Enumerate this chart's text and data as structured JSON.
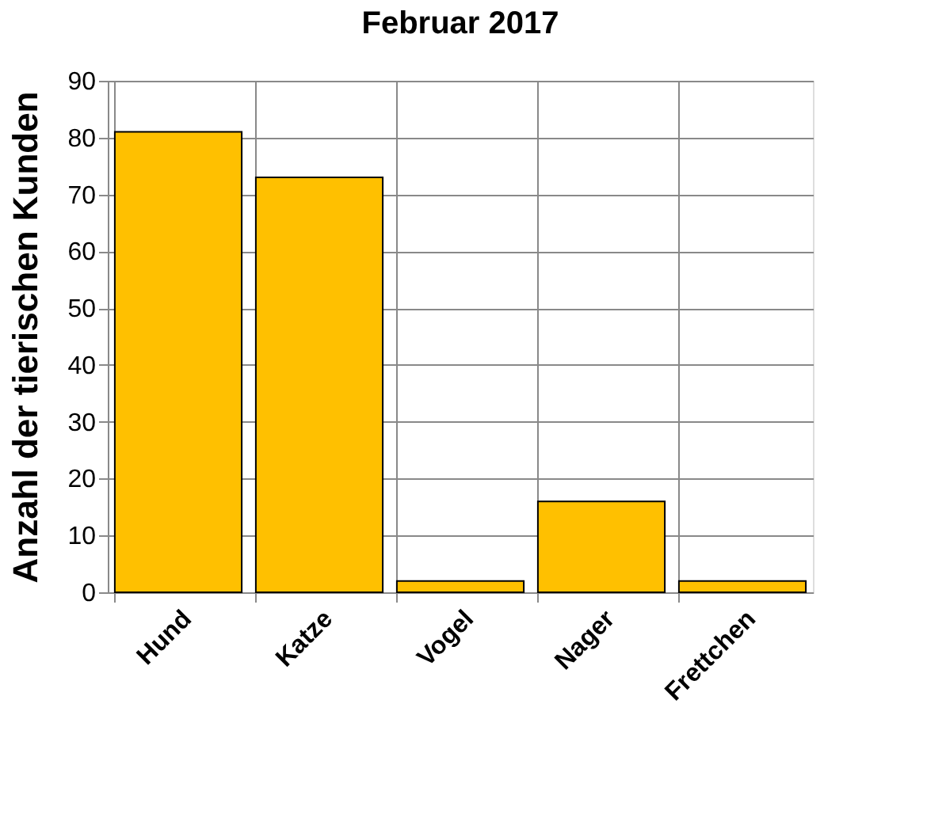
{
  "chart_data": {
    "type": "bar",
    "title": "Februar 2017",
    "ylabel": "Anzahl der tierischen Kunden",
    "categories": [
      "Hund",
      "Katze",
      "Vogel",
      "Nager",
      "Frettchen"
    ],
    "values": [
      81,
      73,
      2,
      16,
      2
    ],
    "color": "#ffc000",
    "ylim": [
      0,
      90
    ],
    "yticks": [
      0,
      10,
      20,
      30,
      40,
      50,
      60,
      70,
      80,
      90
    ],
    "grid": true
  }
}
